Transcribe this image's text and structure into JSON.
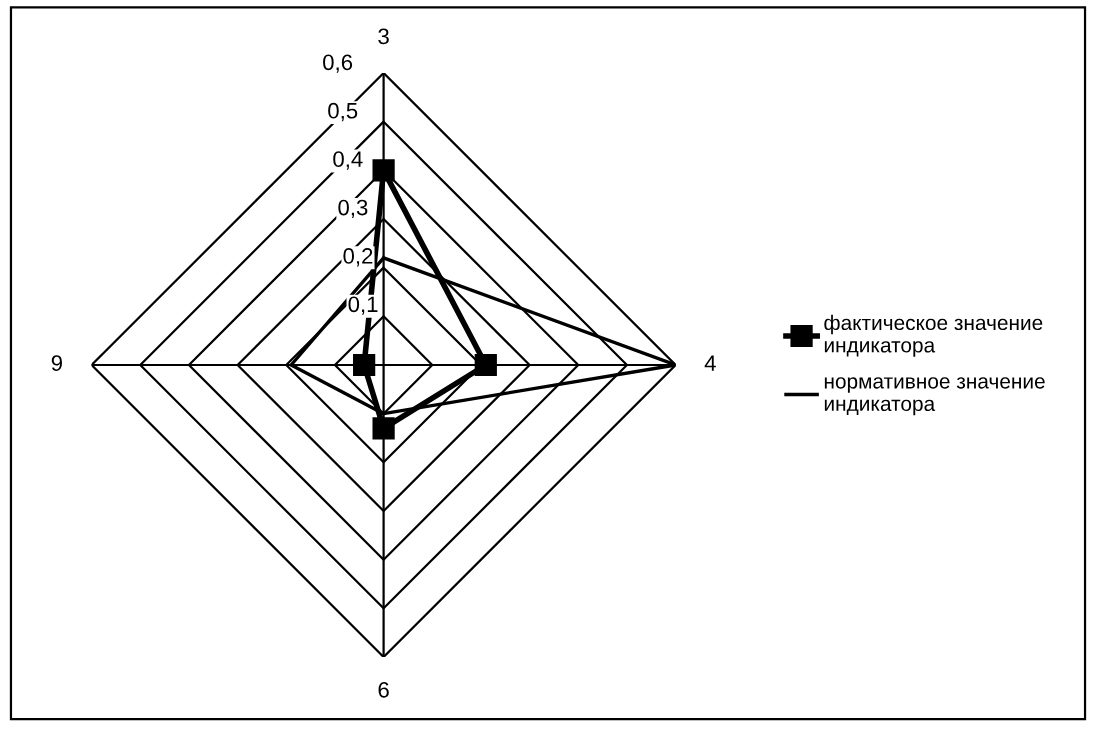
{
  "chart_data": {
    "type": "radar",
    "categories": [
      "3",
      "4",
      "6",
      "9"
    ],
    "series": [
      {
        "name": "фактическое значение индикатора",
        "color": "#000000",
        "marker": "square",
        "values": [
          0.4,
          0.21,
          0.13,
          0.04
        ]
      },
      {
        "name": "нормативное значение индикатора",
        "color": "#000000",
        "marker": "none",
        "values": [
          0.22,
          0.6,
          0.1,
          0.19
        ]
      }
    ],
    "ylim": [
      0,
      0.6
    ],
    "yticks": [
      {
        "value": 0.1,
        "label": "0,1"
      },
      {
        "value": 0.2,
        "label": "0,2"
      },
      {
        "value": 0.3,
        "label": "0,3"
      },
      {
        "value": 0.4,
        "label": "0,4"
      },
      {
        "value": 0.5,
        "label": "0,5"
      },
      {
        "value": 0.6,
        "label": "0,6"
      }
    ],
    "grid": true,
    "legend": "right"
  }
}
